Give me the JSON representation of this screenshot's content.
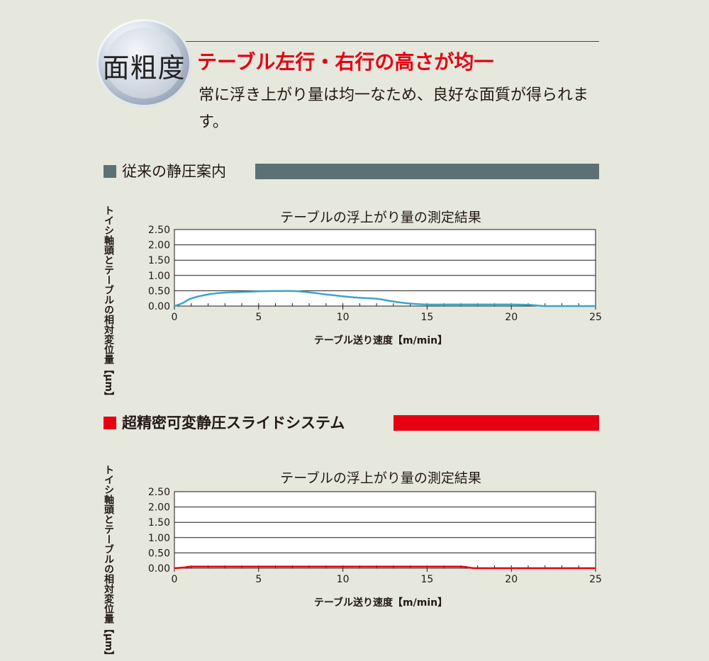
{
  "badge": {
    "label": "面粗度"
  },
  "headline": "テーブル左行・右行の高さが均一",
  "description": "常に浮き上がり量は均一なため、良好な面質が得られます。",
  "sections": [
    {
      "title": "従来の静圧案内",
      "color": "#5d7074"
    },
    {
      "title": "超精密可変静圧スライドシステム",
      "color": "#e60012"
    }
  ],
  "chart_data": [
    {
      "type": "line",
      "title": "テーブルの浮上がり量の測定結果",
      "xlabel": "テーブル送り速度【m/min】",
      "ylabel": "トイシ軸頭とテーブルの相対変位量【μm】",
      "xlim": [
        0,
        25
      ],
      "ylim": [
        0,
        2.5
      ],
      "xticks": [
        "0",
        "5",
        "10",
        "15",
        "20",
        "25"
      ],
      "yticks": [
        "0.00",
        "0.50",
        "1.00",
        "1.50",
        "2.00",
        "2.50"
      ],
      "grid": true,
      "series": [
        {
          "color": "#3aa6c9",
          "x": [
            0,
            0.5,
            1,
            2,
            3,
            4,
            5,
            6,
            7,
            8,
            9,
            10,
            11,
            12,
            13,
            14,
            15,
            16,
            17,
            18,
            19,
            20,
            21,
            21.5,
            22,
            23,
            24,
            25
          ],
          "y": [
            0.0,
            0.1,
            0.25,
            0.38,
            0.44,
            0.46,
            0.48,
            0.49,
            0.49,
            0.45,
            0.38,
            0.32,
            0.27,
            0.24,
            0.15,
            0.08,
            0.05,
            0.05,
            0.05,
            0.05,
            0.05,
            0.05,
            0.04,
            0.02,
            0.0,
            0.0,
            0.0,
            0.0
          ]
        }
      ]
    },
    {
      "type": "line",
      "title": "テーブルの浮上がり量の測定結果",
      "xlabel": "テーブル送り速度【m/min】",
      "ylabel": "トイシ軸頭とテーブルの相対変位量【μm】",
      "xlim": [
        0,
        25
      ],
      "ylim": [
        0,
        2.5
      ],
      "xticks": [
        "0",
        "5",
        "10",
        "15",
        "20",
        "25"
      ],
      "yticks": [
        "0.00",
        "0.50",
        "1.00",
        "1.50",
        "2.00",
        "2.50"
      ],
      "grid": true,
      "series": [
        {
          "color": "#e60012",
          "x": [
            0,
            0.5,
            1,
            2,
            5,
            10,
            15,
            17,
            17.5,
            18,
            20,
            25
          ],
          "y": [
            0.0,
            0.02,
            0.05,
            0.05,
            0.05,
            0.05,
            0.05,
            0.05,
            0.02,
            0.0,
            0.0,
            0.0
          ]
        }
      ]
    }
  ]
}
